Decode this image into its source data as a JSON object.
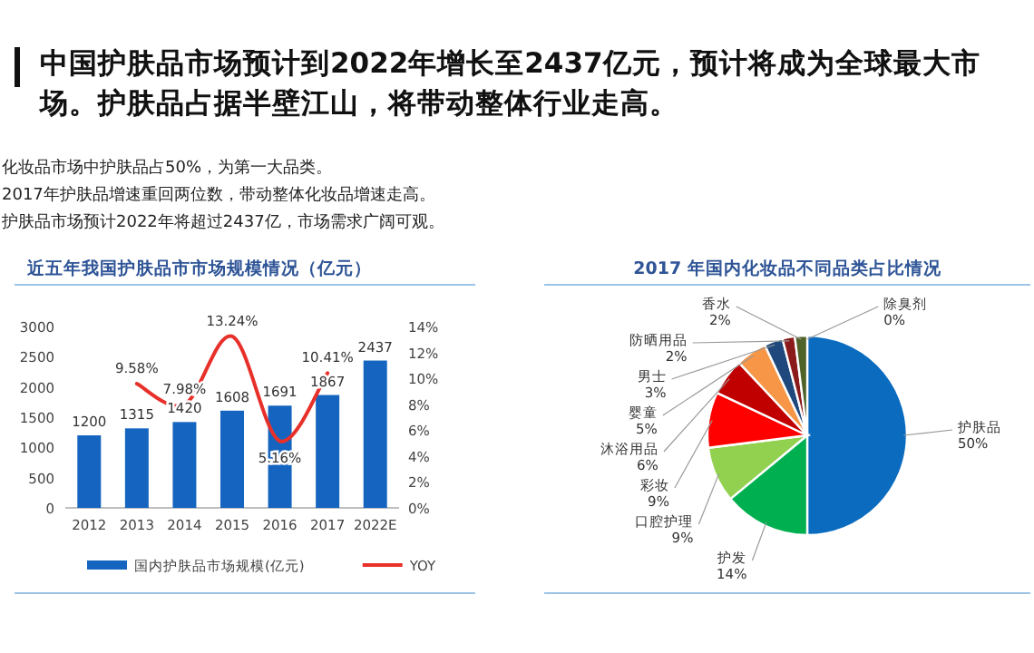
{
  "chart_data": [
    {
      "type": "other",
      "title": "中国护肤品市场预计到2022年增长至2437亿元，预计将成为全球最大市场。护肤品占据半壁江山，将带动整体行业走高。",
      "annotations": [
        "化妆品市场中护肤品占50%，为第一大品类。",
        "2017年护肤品增速重回两位数，带动整体化妆品增速走高。",
        "护肤品市场预计2022年将超过2437亿，市场需求广阔可观。"
      ]
    },
    {
      "type": "bar",
      "title": "近五年我国护肤品市市场规模情况（亿元）",
      "categories": [
        "2012",
        "2013",
        "2014",
        "2015",
        "2016",
        "2017",
        "2022E"
      ],
      "series": [
        {
          "name": "国内护肤品市场规模(亿元)",
          "type": "bar",
          "color": "#1565c0",
          "values": [
            1200,
            1315,
            1420,
            1608,
            1691,
            1867,
            2437
          ],
          "value_labels": [
            "1200",
            "1315",
            "1420",
            "1608",
            "1691",
            "1867",
            "2437"
          ]
        },
        {
          "name": "YOY",
          "type": "line",
          "axis": "y2",
          "color": "#e8302a",
          "values": [
            null,
            9.58,
            7.98,
            13.24,
            5.16,
            10.41,
            null
          ],
          "value_labels": [
            null,
            "9.58%",
            "7.98%",
            "13.24%",
            "5.16%",
            "10.41%",
            null
          ]
        }
      ],
      "ylim": [
        0,
        3000
      ],
      "yticks": [
        0,
        500,
        1000,
        1500,
        2000,
        2500,
        3000
      ],
      "y2lim": [
        0,
        14
      ],
      "y2ticks": [
        {
          "value": 0,
          "label": "0%"
        },
        {
          "value": 2,
          "label": "2%"
        },
        {
          "value": 4,
          "label": "4%"
        },
        {
          "value": 6,
          "label": "6%"
        },
        {
          "value": 8,
          "label": "8%"
        },
        {
          "value": 10,
          "label": "10%"
        },
        {
          "value": 12,
          "label": "12%"
        },
        {
          "value": 14,
          "label": "14%"
        }
      ],
      "legend": "bottom",
      "grid": false,
      "marker": "none",
      "line_style": "solid"
    },
    {
      "type": "pie",
      "title": "2017 年国内化妆品不同品类占比情况",
      "categories": [
        "护肤品",
        "护发",
        "口腔护理",
        "彩妆",
        "沐浴用品",
        "婴童",
        "男士",
        "防晒用品",
        "香水",
        "除臭剂"
      ],
      "values": [
        50,
        14,
        9,
        9,
        6,
        5,
        3,
        2,
        2,
        0
      ],
      "value_labels": [
        "50%",
        "14%",
        "9%",
        "9%",
        "6%",
        "5%",
        "3%",
        "2%",
        "2%",
        "0%"
      ],
      "colors": [
        "#0a6bbf",
        "#00b050",
        "#92d050",
        "#ff0000",
        "#c00000",
        "#f79646",
        "#1f497d",
        "#8b1a1a",
        "#4f6228",
        "#7f7f7f"
      ]
    }
  ]
}
